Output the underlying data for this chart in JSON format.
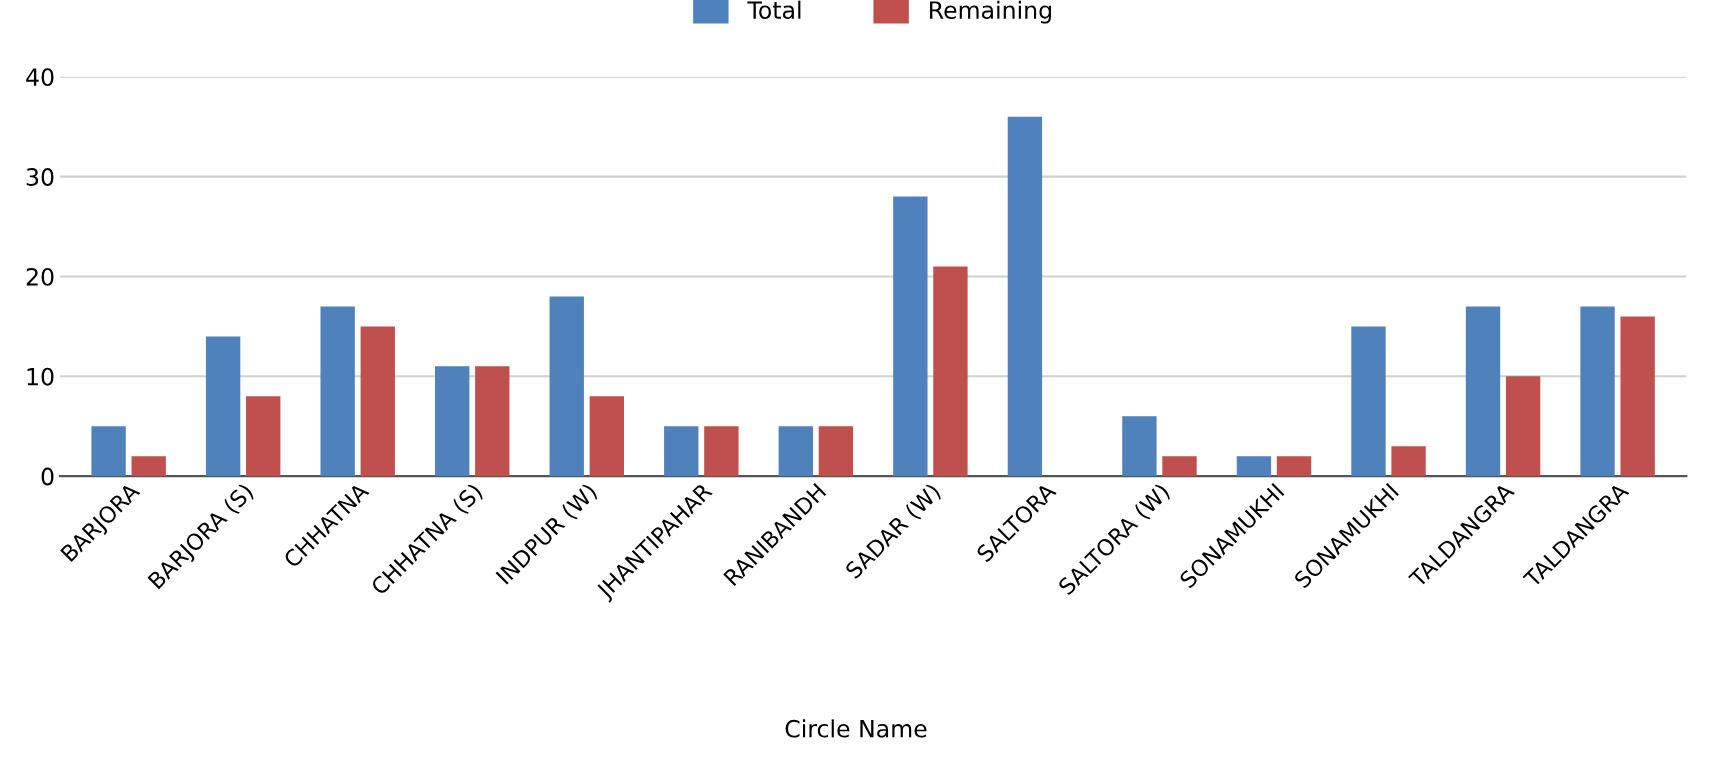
{
  "chart_data": {
    "type": "bar",
    "xlabel": "Circle Name",
    "categories": [
      "BARJORA",
      "BARJORA (S)",
      "CHHATNA",
      "CHHATNA (S)",
      "INDPUR (W)",
      "JHANTIPAHAR",
      "RANIBANDH",
      "SADAR (W)",
      "SALTORA",
      "SALTORA (W)",
      "SONAMUKHI",
      "SONAMUKHI",
      "TALDANGRA",
      "TALDANGRA"
    ],
    "series": [
      {
        "name": "Total",
        "color": "#4f81bd",
        "values": [
          5,
          14,
          17,
          11,
          18,
          5,
          5,
          28,
          36,
          6,
          2,
          15,
          17,
          17
        ]
      },
      {
        "name": "Remaining",
        "color": "#c0504d",
        "values": [
          2,
          8,
          15,
          11,
          8,
          5,
          5,
          21,
          0,
          2,
          2,
          3,
          10,
          16
        ]
      }
    ],
    "ylim": [
      0,
      40
    ],
    "yticks": [
      0,
      10,
      20,
      30,
      40
    ],
    "grid": "y",
    "legend": "top"
  }
}
